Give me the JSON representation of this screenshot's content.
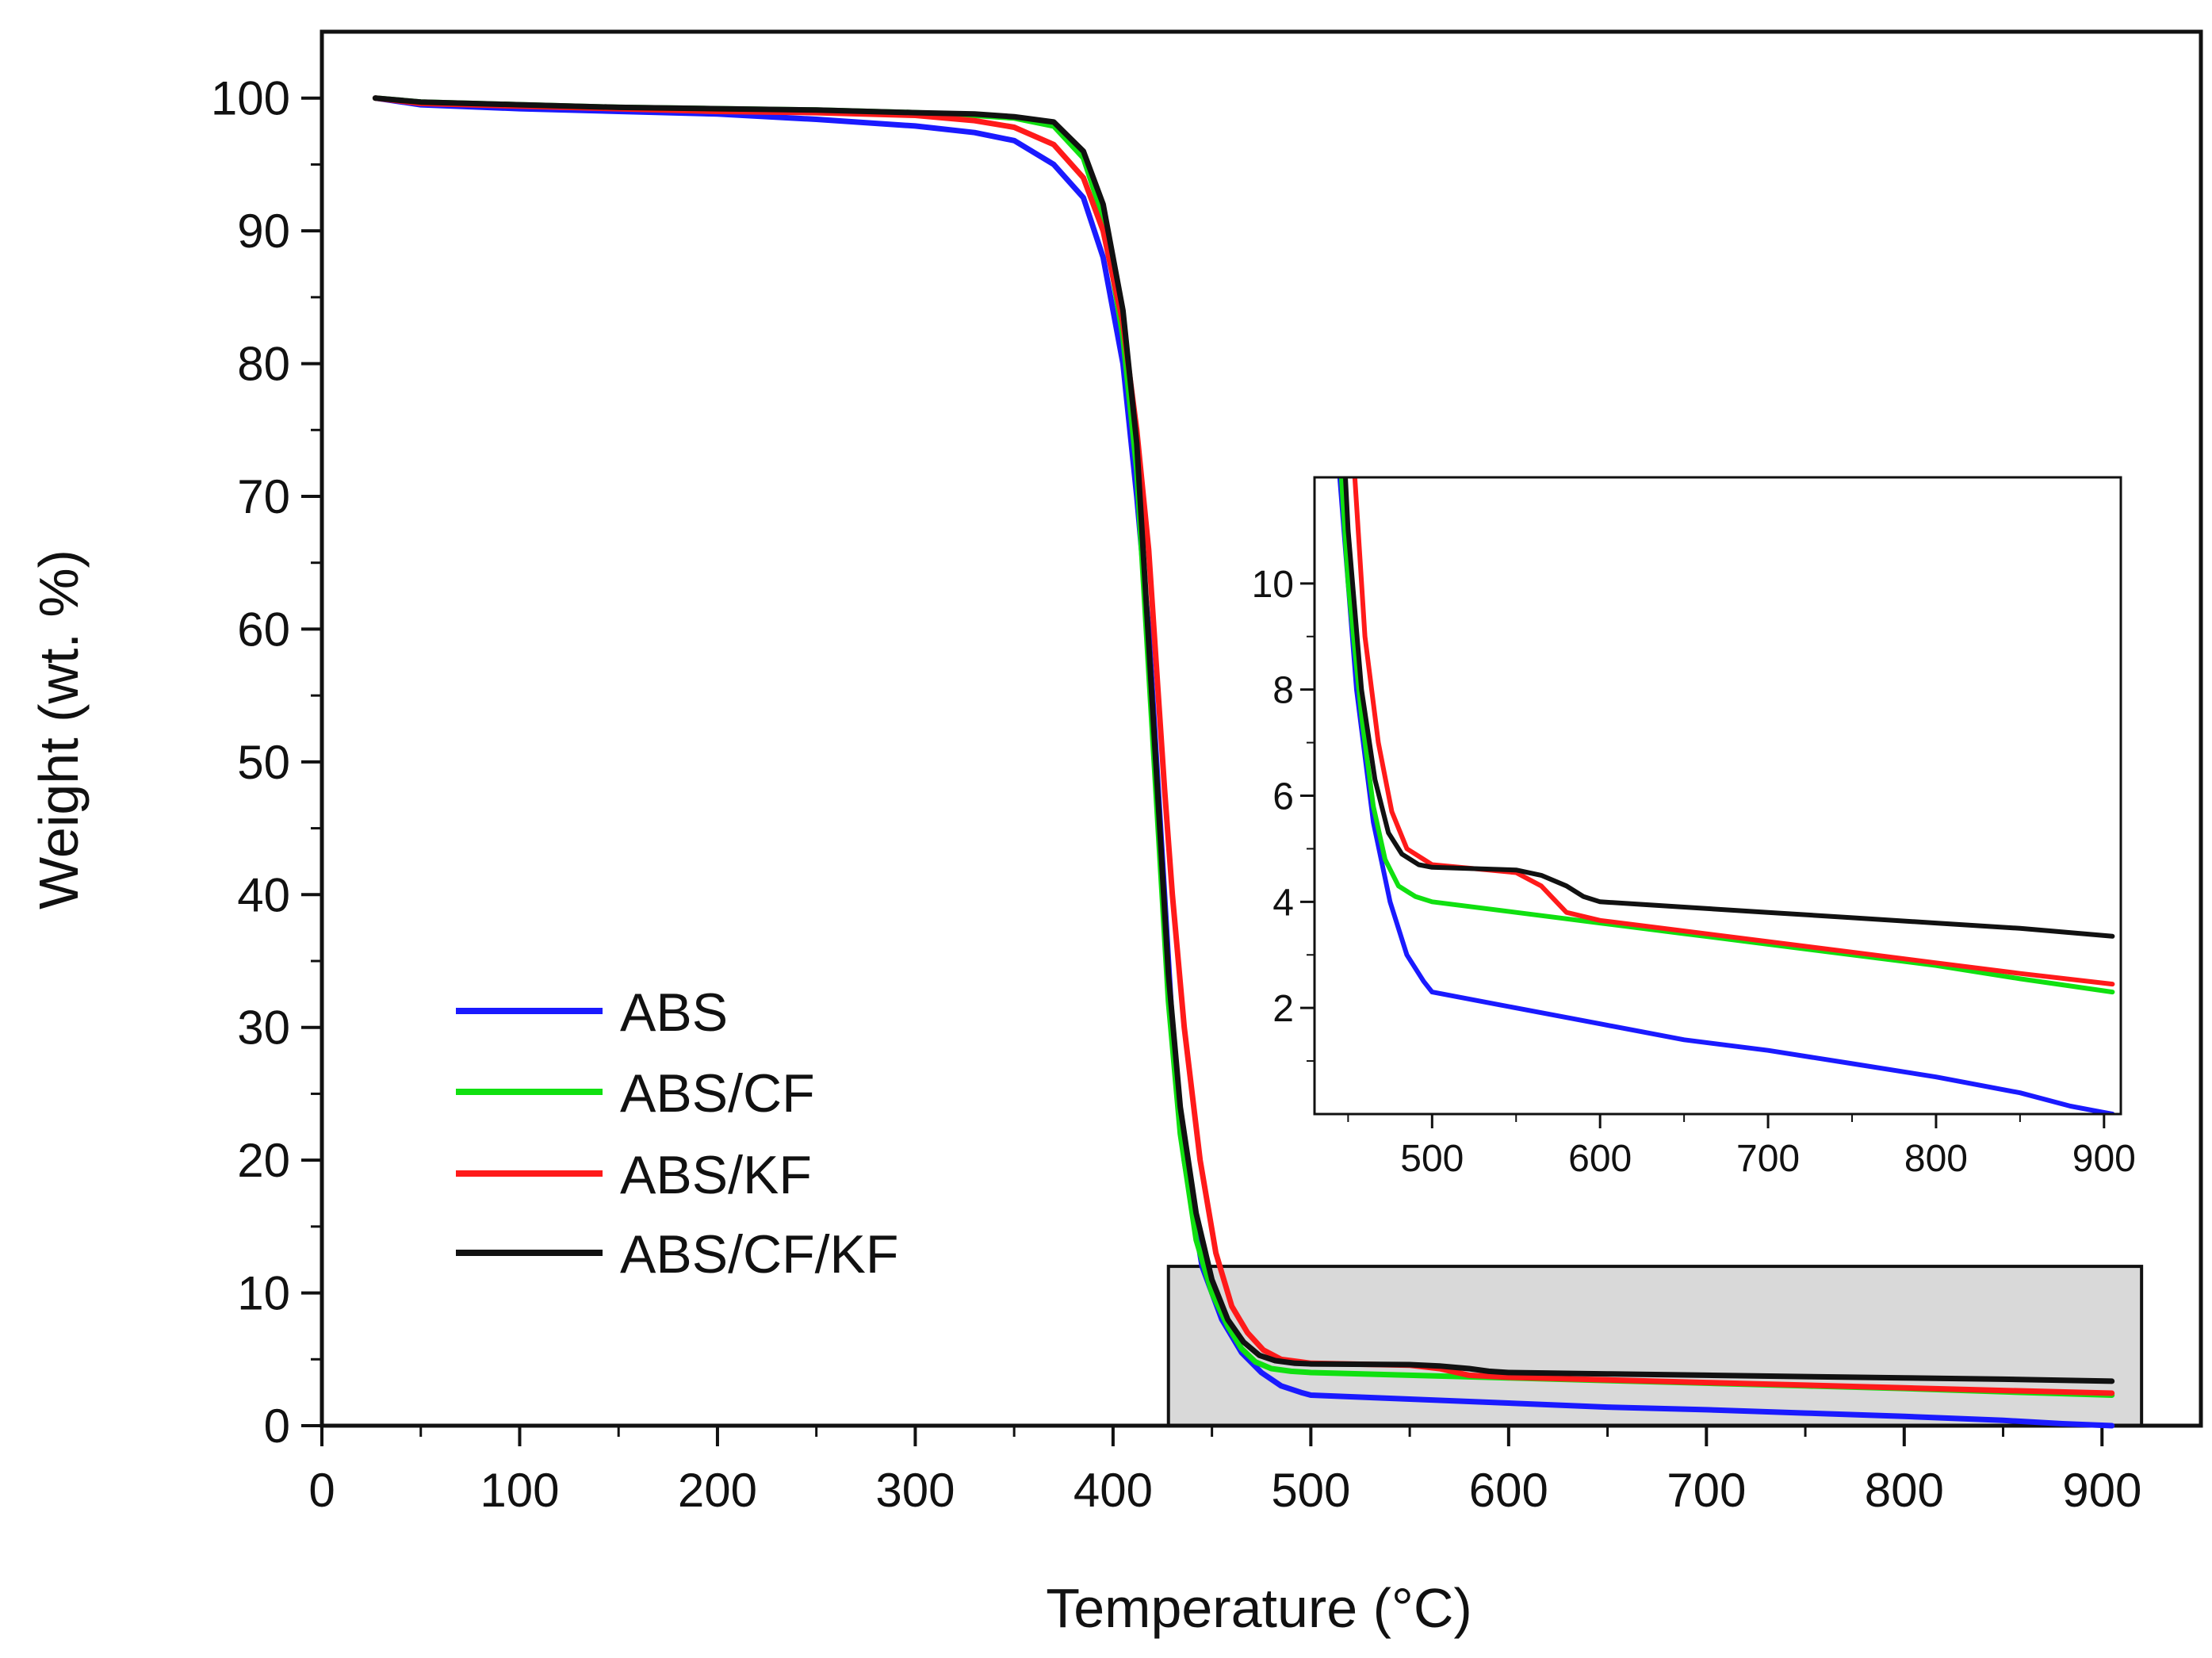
{
  "chart_data": {
    "type": "line",
    "xlabel": "Temperature (°C)",
    "ylabel": "Weight (wt. %)",
    "xlim": [
      0,
      950
    ],
    "ylim": [
      0,
      105
    ],
    "x_ticks": [
      "0",
      "100",
      "200",
      "300",
      "400",
      "500",
      "600",
      "700",
      "800",
      "900"
    ],
    "y_ticks": [
      "0",
      "10",
      "20",
      "30",
      "40",
      "50",
      "60",
      "70",
      "80",
      "90",
      "100"
    ],
    "legend_position": "lower-left",
    "highlight_region": {
      "x": [
        428,
        920
      ],
      "y": [
        0,
        12
      ]
    },
    "series": [
      {
        "name": "ABS",
        "color": "#1a1aff",
        "points": [
          [
            27,
            100
          ],
          [
            50,
            99.5
          ],
          [
            100,
            99.2
          ],
          [
            150,
            99
          ],
          [
            200,
            98.8
          ],
          [
            250,
            98.4
          ],
          [
            300,
            97.9
          ],
          [
            330,
            97.4
          ],
          [
            350,
            96.8
          ],
          [
            370,
            95
          ],
          [
            385,
            92.5
          ],
          [
            395,
            88
          ],
          [
            405,
            80
          ],
          [
            412,
            70
          ],
          [
            418,
            60
          ],
          [
            422,
            50
          ],
          [
            426,
            40
          ],
          [
            430,
            30
          ],
          [
            436,
            20
          ],
          [
            445,
            12
          ],
          [
            455,
            8
          ],
          [
            465,
            5.5
          ],
          [
            475,
            4
          ],
          [
            485,
            3
          ],
          [
            495,
            2.5
          ],
          [
            500,
            2.3
          ],
          [
            550,
            2
          ],
          [
            600,
            1.7
          ],
          [
            650,
            1.4
          ],
          [
            700,
            1.2
          ],
          [
            750,
            0.95
          ],
          [
            800,
            0.7
          ],
          [
            850,
            0.4
          ],
          [
            880,
            0.15
          ],
          [
            905,
            0
          ]
        ]
      },
      {
        "name": "ABS/CF",
        "color": "#10e010",
        "points": [
          [
            27,
            100
          ],
          [
            50,
            99.7
          ],
          [
            100,
            99.5
          ],
          [
            150,
            99.3
          ],
          [
            200,
            99.2
          ],
          [
            250,
            99.1
          ],
          [
            300,
            98.9
          ],
          [
            330,
            98.7
          ],
          [
            350,
            98.5
          ],
          [
            370,
            97.9
          ],
          [
            385,
            95.5
          ],
          [
            395,
            91
          ],
          [
            405,
            82
          ],
          [
            412,
            72
          ],
          [
            416,
            62
          ],
          [
            420,
            52
          ],
          [
            424,
            42
          ],
          [
            428,
            32
          ],
          [
            434,
            22
          ],
          [
            442,
            14
          ],
          [
            450,
            10
          ],
          [
            458,
            7.5
          ],
          [
            465,
            5.8
          ],
          [
            472,
            4.8
          ],
          [
            480,
            4.3
          ],
          [
            490,
            4.1
          ],
          [
            500,
            4
          ],
          [
            550,
            3.8
          ],
          [
            600,
            3.6
          ],
          [
            650,
            3.4
          ],
          [
            700,
            3.2
          ],
          [
            750,
            3
          ],
          [
            800,
            2.8
          ],
          [
            850,
            2.55
          ],
          [
            905,
            2.3
          ]
        ]
      },
      {
        "name": "ABS/KF",
        "color": "#ff1a1a",
        "points": [
          [
            27,
            100
          ],
          [
            50,
            99.6
          ],
          [
            100,
            99.4
          ],
          [
            150,
            99.2
          ],
          [
            200,
            99
          ],
          [
            250,
            98.9
          ],
          [
            300,
            98.7
          ],
          [
            330,
            98.3
          ],
          [
            350,
            97.8
          ],
          [
            370,
            96.5
          ],
          [
            385,
            94
          ],
          [
            395,
            90
          ],
          [
            405,
            83
          ],
          [
            412,
            75
          ],
          [
            418,
            66
          ],
          [
            422,
            57
          ],
          [
            426,
            48
          ],
          [
            430,
            40
          ],
          [
            436,
            30
          ],
          [
            444,
            20
          ],
          [
            452,
            13
          ],
          [
            460,
            9
          ],
          [
            468,
            7
          ],
          [
            476,
            5.7
          ],
          [
            485,
            5
          ],
          [
            495,
            4.8
          ],
          [
            500,
            4.7
          ],
          [
            550,
            4.55
          ],
          [
            565,
            4.3
          ],
          [
            580,
            3.8
          ],
          [
            600,
            3.65
          ],
          [
            650,
            3.45
          ],
          [
            700,
            3.25
          ],
          [
            750,
            3.05
          ],
          [
            800,
            2.85
          ],
          [
            850,
            2.65
          ],
          [
            905,
            2.45
          ]
        ]
      },
      {
        "name": "ABS/CF/KF",
        "color": "#111111",
        "points": [
          [
            27,
            100
          ],
          [
            50,
            99.7
          ],
          [
            100,
            99.5
          ],
          [
            150,
            99.3
          ],
          [
            200,
            99.2
          ],
          [
            250,
            99.1
          ],
          [
            300,
            98.9
          ],
          [
            330,
            98.8
          ],
          [
            350,
            98.6
          ],
          [
            370,
            98.2
          ],
          [
            385,
            96
          ],
          [
            395,
            92
          ],
          [
            405,
            84
          ],
          [
            412,
            74
          ],
          [
            416,
            64
          ],
          [
            420,
            54
          ],
          [
            424,
            44
          ],
          [
            428,
            34
          ],
          [
            434,
            24
          ],
          [
            442,
            16
          ],
          [
            450,
            11
          ],
          [
            458,
            8
          ],
          [
            466,
            6.3
          ],
          [
            474,
            5.3
          ],
          [
            482,
            4.9
          ],
          [
            492,
            4.7
          ],
          [
            500,
            4.65
          ],
          [
            550,
            4.6
          ],
          [
            565,
            4.5
          ],
          [
            580,
            4.3
          ],
          [
            590,
            4.1
          ],
          [
            600,
            4
          ],
          [
            650,
            3.9
          ],
          [
            700,
            3.8
          ],
          [
            750,
            3.7
          ],
          [
            800,
            3.6
          ],
          [
            850,
            3.5
          ],
          [
            905,
            3.35
          ]
        ]
      }
    ],
    "inset": {
      "xlim": [
        430,
        910
      ],
      "ylim": [
        0,
        12
      ],
      "x_ticks": [
        "500",
        "600",
        "700",
        "800",
        "900"
      ],
      "y_ticks": [
        "2",
        "4",
        "6",
        "8",
        "10"
      ]
    }
  }
}
